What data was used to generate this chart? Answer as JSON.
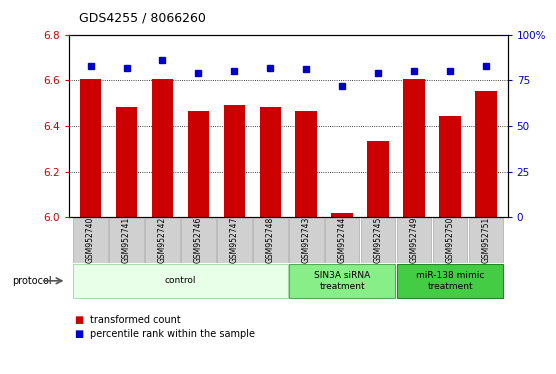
{
  "title": "GDS4255 / 8066260",
  "samples": [
    "GSM952740",
    "GSM952741",
    "GSM952742",
    "GSM952746",
    "GSM952747",
    "GSM952748",
    "GSM952743",
    "GSM952744",
    "GSM952745",
    "GSM952749",
    "GSM952750",
    "GSM952751"
  ],
  "bar_values": [
    6.605,
    6.485,
    6.605,
    6.465,
    6.49,
    6.485,
    6.465,
    6.02,
    6.335,
    6.605,
    6.445,
    6.555
  ],
  "dot_values": [
    83,
    82,
    86,
    79,
    80,
    82,
    81,
    72,
    79,
    80,
    80,
    83
  ],
  "bar_color": "#cc0000",
  "dot_color": "#0000cc",
  "ylim_left": [
    6.0,
    6.8
  ],
  "ylim_right": [
    0,
    100
  ],
  "yticks_left": [
    6.0,
    6.2,
    6.4,
    6.6,
    6.8
  ],
  "yticks_right": [
    0,
    25,
    50,
    75,
    100
  ],
  "groups": [
    {
      "label": "control",
      "start": 0,
      "end": 5,
      "color": "#e8ffe8",
      "edge_color": "#aaddaa"
    },
    {
      "label": "SIN3A siRNA\ntreatment",
      "start": 6,
      "end": 8,
      "color": "#88ee88",
      "edge_color": "#55aa55"
    },
    {
      "label": "miR-138 mimic\ntreatment",
      "start": 9,
      "end": 11,
      "color": "#44cc44",
      "edge_color": "#228822"
    }
  ],
  "protocol_label": "protocol"
}
